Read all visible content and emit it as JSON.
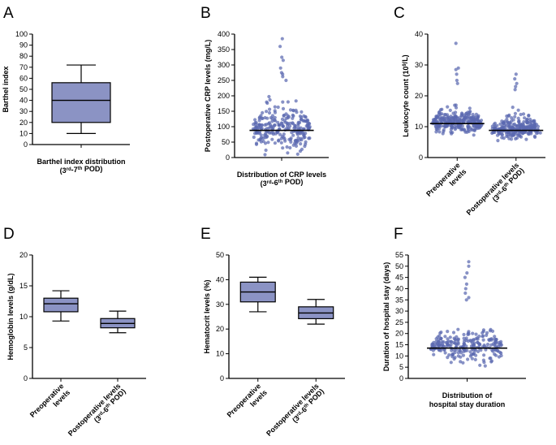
{
  "colors": {
    "fill": "#8b93c4",
    "dot": "#5a68b0",
    "ink": "#000000"
  },
  "chart_data": [
    {
      "letter": "A",
      "type": "box",
      "ylabel": "Barthel index",
      "ylim": [
        0,
        100
      ],
      "yticks": [
        0,
        10,
        20,
        30,
        40,
        50,
        60,
        70,
        80,
        90,
        100
      ],
      "categories": [
        [
          "Barthel index distribution",
          "(3rd-7th POD)"
        ]
      ],
      "boxes": [
        {
          "min": 10,
          "q1": 20,
          "median": 40,
          "q3": 56,
          "max": 72
        }
      ]
    },
    {
      "letter": "B",
      "type": "scatter",
      "ylabel": "Postoperative CRP levels (mg/L)",
      "ylim": [
        0,
        400
      ],
      "yticks": [
        0,
        50,
        100,
        150,
        200,
        250,
        300,
        350,
        400
      ],
      "categories": [
        [
          "Distribution of CRP levels",
          "(3rd-6th POD)"
        ]
      ],
      "series": [
        {
          "n": 260,
          "median": 88,
          "spread": 55,
          "min": 8,
          "max": 385,
          "outliers": [
            385,
            360,
            325,
            315,
            290,
            275,
            270,
            262,
            250
          ]
        }
      ]
    },
    {
      "letter": "C",
      "type": "scatter",
      "ylabel": "Leukocyte count (10^9/L)",
      "ylim": [
        0,
        40
      ],
      "yticks": [
        0,
        10,
        20,
        30,
        40
      ],
      "categories": [
        [
          "Preoperative",
          "levels"
        ],
        [
          "Postoperative levels",
          "(3rd-6th POD)"
        ]
      ],
      "series": [
        {
          "n": 270,
          "median": 11,
          "spread": 3.2,
          "min": 1,
          "max": 37,
          "outliers": [
            37,
            29,
            28.5,
            27,
            25,
            24
          ]
        },
        {
          "n": 260,
          "median": 8.8,
          "spread": 2.8,
          "min": 2,
          "max": 27,
          "outliers": [
            27,
            25.5,
            24,
            23,
            22
          ]
        }
      ]
    },
    {
      "letter": "D",
      "type": "box",
      "ylabel": "Hemoglobin levels (g/dL)",
      "ylim": [
        0,
        20
      ],
      "yticks": [
        0,
        5,
        10,
        15,
        20
      ],
      "categories": [
        [
          "Preoperative",
          "levels"
        ],
        [
          "Postoperative levels",
          "(3rd-6th POD)"
        ]
      ],
      "boxes": [
        {
          "min": 9.3,
          "q1": 10.8,
          "median": 12.1,
          "q3": 13.0,
          "max": 14.2
        },
        {
          "min": 7.4,
          "q1": 8.2,
          "median": 8.9,
          "q3": 9.7,
          "max": 10.9
        }
      ]
    },
    {
      "letter": "E",
      "type": "box",
      "ylabel": "Hematocrit levels (%)",
      "ylim": [
        0,
        50
      ],
      "yticks": [
        0,
        10,
        20,
        30,
        40,
        50
      ],
      "categories": [
        [
          "Preoperative",
          "levels"
        ],
        [
          "Postoperative levels",
          "(3rd-6th POD)"
        ]
      ],
      "boxes": [
        {
          "min": 27,
          "q1": 31,
          "median": 35,
          "q3": 39,
          "max": 41
        },
        {
          "min": 22,
          "q1": 24.2,
          "median": 26.5,
          "q3": 29,
          "max": 32
        }
      ]
    },
    {
      "letter": "F",
      "type": "scatter",
      "ylabel": "Duration of hospital stay (days)",
      "ylim": [
        0,
        55
      ],
      "yticks": [
        0,
        5,
        10,
        15,
        20,
        25,
        30,
        35,
        40,
        45,
        50,
        55
      ],
      "categories": [
        [
          "Distribution of",
          "hospital stay duration"
        ]
      ],
      "series": [
        {
          "n": 240,
          "median": 13.5,
          "spread": 6,
          "min": 1,
          "max": 52,
          "outliers": [
            52,
            50,
            47,
            45,
            42,
            40,
            38,
            36,
            35
          ]
        }
      ]
    }
  ]
}
